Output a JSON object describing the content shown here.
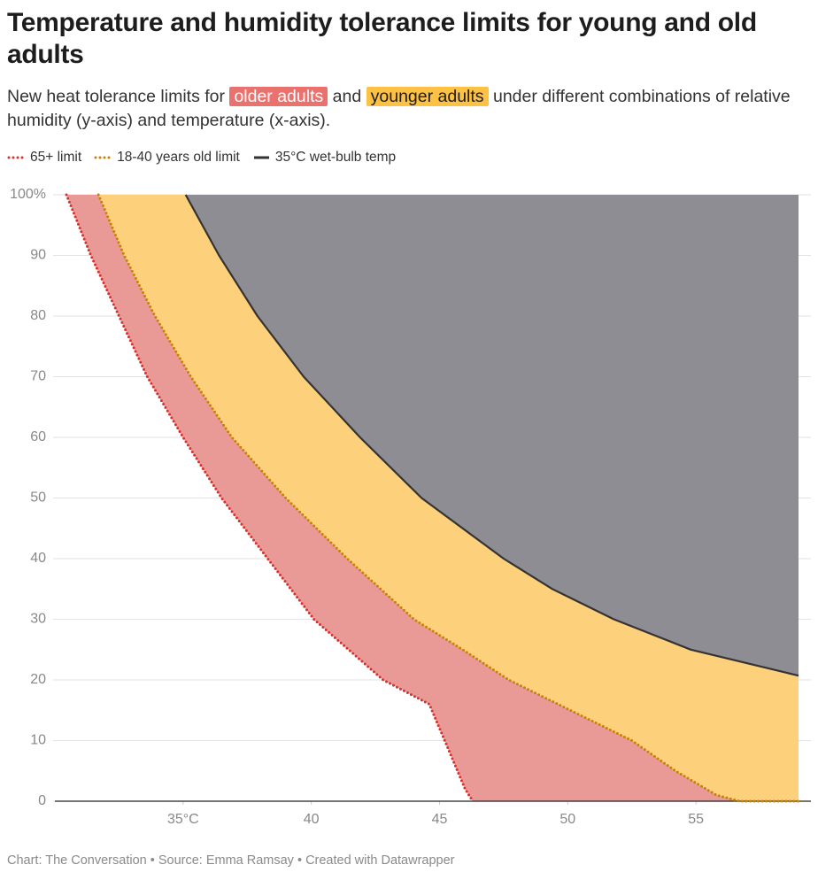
{
  "chart_data": {
    "type": "line",
    "title": "Temperature and humidity tolerance limits for young and old adults",
    "subtitle": [
      "New heat tolerance limits for ",
      "older adults",
      " and ",
      "younger adults",
      " under different combinations of relative humidity (y-axis) and temperature (x-axis)."
    ],
    "subtitle_highlights": [
      "#e9726e",
      "#fdc244"
    ],
    "footer": "Chart: The Conversation • Source: Emma Ramsay • Created with Datawrapper",
    "xlim": [
      30,
      59
    ],
    "ylim": [
      0,
      100
    ],
    "xticks": [
      {
        "value": 35,
        "label": "35°C"
      },
      40,
      45,
      50,
      55
    ],
    "yticks": [
      0,
      10,
      20,
      30,
      40,
      50,
      60,
      70,
      80,
      90,
      {
        "value": 100,
        "label": "100%"
      }
    ],
    "grid": true,
    "background": "#8f8d94",
    "series": [
      {
        "name": "65+ limit",
        "color": "#d9302b",
        "fill": "#e99a97",
        "dash": true,
        "x": [
          30.45,
          31.4,
          32.5,
          33.6,
          35.0,
          36.5,
          38.3,
          40.1,
          42.8,
          44.6,
          45.2,
          46.0,
          46.3
        ],
        "values": [
          100,
          90,
          80,
          70,
          60,
          50,
          40,
          30,
          20,
          16,
          10,
          2,
          0
        ]
      },
      {
        "name": "18-40 years old limit",
        "color": "#c98100",
        "fill": "#fdd17b",
        "dash": true,
        "x": [
          31.7,
          32.7,
          33.9,
          35.3,
          36.9,
          39.0,
          41.4,
          44.0,
          45.9,
          47.7,
          50.1,
          52.5,
          54.2,
          55.8,
          56.7,
          59
        ],
        "values": [
          100,
          90,
          80,
          70,
          60,
          50,
          40,
          30,
          25,
          20,
          15,
          10,
          5,
          1,
          0,
          0
        ]
      },
      {
        "name": "35°C wet-bulb temp",
        "color": "#333333",
        "dash": false,
        "x": [
          35.1,
          36.4,
          37.9,
          39.7,
          41.9,
          44.3,
          47.5,
          49.4,
          51.8,
          54.8,
          59
        ],
        "values": [
          100,
          90,
          80,
          70,
          60,
          50,
          40,
          35,
          30,
          25,
          20.7
        ]
      }
    ]
  }
}
